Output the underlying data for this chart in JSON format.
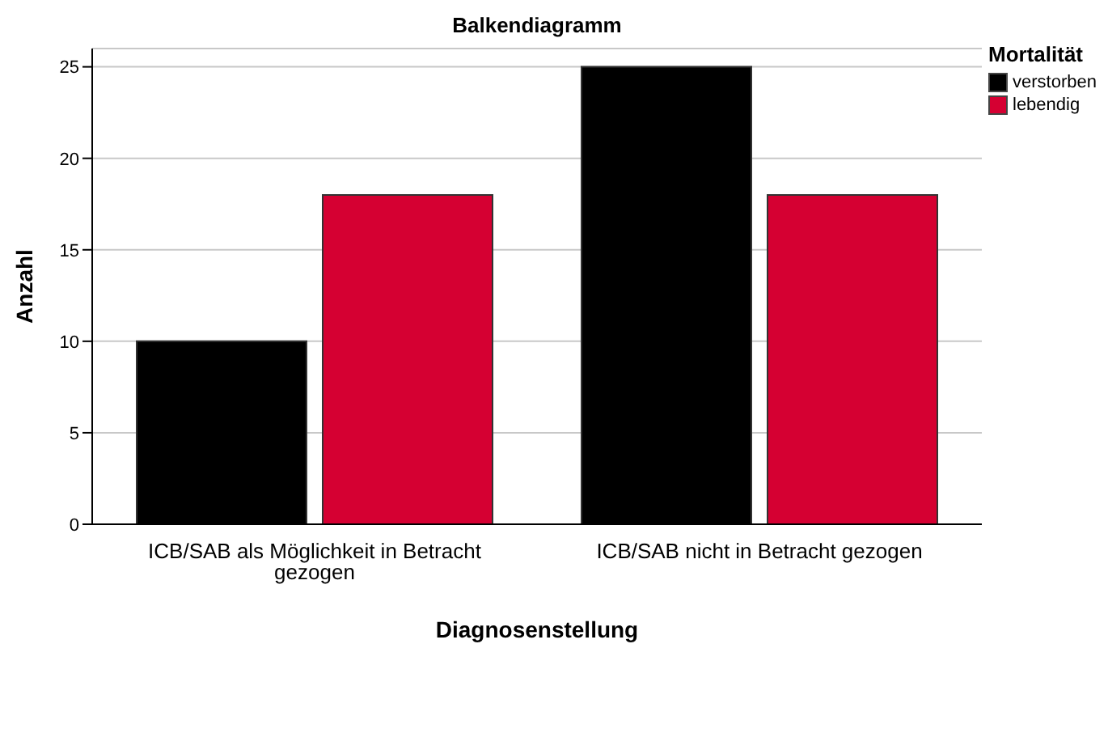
{
  "chart_data": {
    "type": "bar",
    "title": "Balkendiagramm",
    "xlabel": "Diagnosenstellung",
    "ylabel": "Anzahl",
    "legend_title": "Mortalität",
    "categories": [
      "ICB/SAB als Möglichkeit in Betracht gezogen",
      "ICB/SAB nicht in Betracht gezogen"
    ],
    "series": [
      {
        "name": "verstorben",
        "color": "#000000",
        "values": [
          10,
          25
        ]
      },
      {
        "name": "lebendig",
        "color": "#d50032",
        "values": [
          18,
          18
        ]
      }
    ],
    "ylim": [
      0,
      26
    ],
    "yticks": [
      0,
      5,
      10,
      15,
      20,
      25
    ],
    "grid": "y",
    "legend": "top right"
  }
}
